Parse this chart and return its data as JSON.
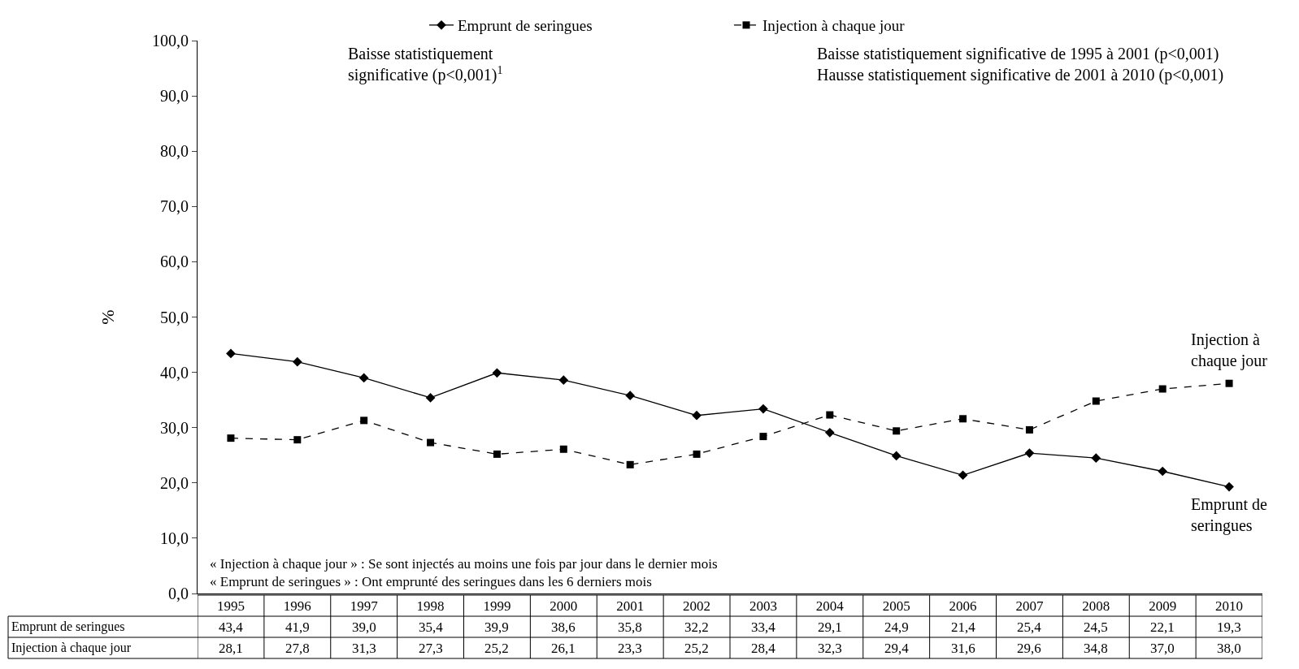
{
  "chart_data": {
    "type": "line",
    "ylabel": "%",
    "categories": [
      "1995",
      "1996",
      "1997",
      "1998",
      "1999",
      "2000",
      "2001",
      "2002",
      "2003",
      "2004",
      "2005",
      "2006",
      "2007",
      "2008",
      "2009",
      "2010"
    ],
    "series": [
      {
        "name": "Emprunt de seringues",
        "color": "#000000",
        "marker": "diamond",
        "line_style": "solid",
        "values": [
          43.4,
          41.9,
          39.0,
          35.4,
          39.9,
          38.6,
          35.8,
          32.2,
          33.4,
          29.1,
          24.9,
          21.4,
          25.4,
          24.5,
          22.1,
          19.3
        ],
        "value_labels": [
          "43,4",
          "41,9",
          "39,0",
          "35,4",
          "39,9",
          "38,6",
          "35,8",
          "32,2",
          "33,4",
          "29,1",
          "24,9",
          "21,4",
          "25,4",
          "24,5",
          "22,1",
          "19,3"
        ]
      },
      {
        "name": "Injection à chaque jour",
        "color": "#000000",
        "marker": "square",
        "line_style": "dashed",
        "values": [
          28.1,
          27.8,
          31.3,
          27.3,
          25.2,
          26.1,
          23.3,
          25.2,
          28.4,
          32.3,
          29.4,
          31.6,
          29.6,
          34.8,
          37.0,
          38.0
        ],
        "value_labels": [
          "28,1",
          "27,8",
          "31,3",
          "27,3",
          "25,2",
          "26,1",
          "23,3",
          "25,2",
          "28,4",
          "32,3",
          "29,4",
          "31,6",
          "29,6",
          "34,8",
          "37,0",
          "38,0"
        ]
      }
    ],
    "ylim": [
      0,
      100
    ],
    "yticks": [
      {
        "value": 0,
        "label": "0,0"
      },
      {
        "value": 10,
        "label": "10,0"
      },
      {
        "value": 20,
        "label": "20,0"
      },
      {
        "value": 30,
        "label": "30,0"
      },
      {
        "value": 40,
        "label": "40,0"
      },
      {
        "value": 50,
        "label": "50,0"
      },
      {
        "value": 60,
        "label": "60,0"
      },
      {
        "value": 70,
        "label": "70,0"
      },
      {
        "value": 80,
        "label": "80,0"
      },
      {
        "value": 90,
        "label": "90,0"
      },
      {
        "value": 100,
        "label": "100,0"
      }
    ],
    "legend": "top",
    "data_labels": true,
    "annotations": [
      "Baisse statistiquement\nsignificative (p<0,001)$^{1}$",
      "Baisse statistiquement significative de 1995 à 2001 (p<0,001)\nHausse statistiquement significative de 2001 à 2010 (p<0,001)",
      "« Injection à chaque jour » : Se sont injectés au moins une fois par jour dans le dernier mois\n« Emprunt de seringues » : Ont emprunté des seringues dans les 6 derniers mois"
    ]
  }
}
